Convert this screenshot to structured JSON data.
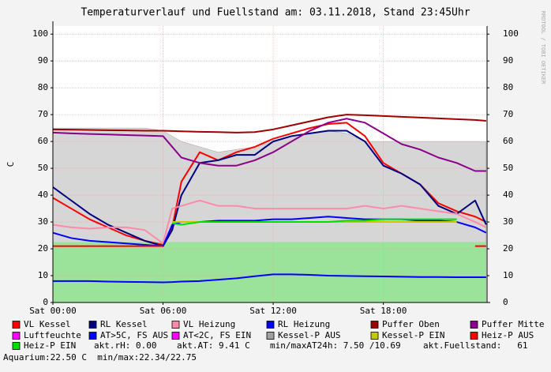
{
  "chart_data": {
    "type": "line",
    "title": "Temperaturverlauf und Fuellstand am: 03.11.2018, Stand 23:45Uhr",
    "y_label": "C",
    "watermark": "RRDTOOL / TOBI OETIKER",
    "x": [
      0,
      1,
      2,
      3,
      4,
      5,
      6,
      6.5,
      7,
      8,
      9,
      10,
      11,
      12,
      13,
      14,
      15,
      16,
      17,
      18,
      19,
      20,
      21,
      22,
      23,
      23.6
    ],
    "xlim": [
      0,
      23.65
    ],
    "xticks": [
      {
        "value": 0,
        "label": "Sat 00:00"
      },
      {
        "value": 6,
        "label": "Sat 06:00"
      },
      {
        "value": 12,
        "label": "Sat 12:00"
      },
      {
        "value": 18,
        "label": "Sat 18:00"
      }
    ],
    "ylim": [
      0,
      103
    ],
    "yticks": [
      0,
      10,
      20,
      30,
      40,
      50,
      60,
      70,
      80,
      90,
      100
    ],
    "y2lim": [
      0,
      103
    ],
    "y2ticks": [
      0,
      10,
      20,
      30,
      40,
      50,
      60,
      70,
      80,
      90,
      100
    ],
    "grid": true,
    "fill_area": {
      "color": "#9be39b",
      "values": [
        22.5,
        22.5,
        22.5,
        22.5,
        22.5,
        22.5,
        22.5,
        22.5,
        22.5,
        22.5,
        22.5,
        22.5,
        22.5,
        22.5,
        22.5,
        22.5,
        22.5,
        22.5,
        22.5,
        22.5,
        22.5,
        22.5,
        22.5,
        22.5,
        22.5,
        22.5
      ]
    },
    "series": [
      {
        "name": "VL Kessel",
        "color": "#ff0000",
        "values": [
          39,
          35,
          31,
          28,
          25,
          23,
          21.5,
          28,
          45,
          56,
          53,
          56,
          58,
          61,
          63,
          65,
          66.5,
          67,
          62,
          52,
          48,
          44,
          37,
          34,
          32,
          30
        ]
      },
      {
        "name": "RL Kessel",
        "color": "#000080",
        "values": [
          43,
          38,
          33,
          29,
          26,
          23,
          21,
          27,
          40,
          52,
          53,
          55,
          55,
          60,
          62,
          63,
          64,
          64,
          60,
          51,
          48,
          44,
          36,
          33,
          38,
          29
        ]
      },
      {
        "name": "VL Heizung",
        "color": "#ff8aa8",
        "values": [
          29,
          28,
          27.5,
          28,
          28,
          27,
          22,
          35,
          36,
          38,
          36,
          36,
          35,
          35,
          35,
          35,
          35,
          35,
          36,
          35,
          36,
          35,
          34,
          33,
          30,
          28
        ]
      },
      {
        "name": "RL Heizung",
        "color": "#0000ff",
        "values": [
          26,
          24,
          23,
          22.5,
          22,
          21.5,
          21,
          29,
          30,
          30,
          30.5,
          30.5,
          30.5,
          31,
          31,
          31.5,
          32,
          31.5,
          31,
          31,
          31,
          30.5,
          30.5,
          30,
          28,
          26
        ]
      },
      {
        "name": "Puffer Oben",
        "color": "#a00000",
        "values": [
          64.5,
          64.4,
          64.3,
          64.2,
          64.1,
          64,
          64,
          63.9,
          63.8,
          63.6,
          63.5,
          63.3,
          63.5,
          64.5,
          66,
          67.5,
          69,
          70,
          69.8,
          69.5,
          69.2,
          68.9,
          68.6,
          68.3,
          68,
          67.7
        ]
      },
      {
        "name": "Puffer Mitte",
        "color": "#8b008b",
        "values": [
          63.3,
          63,
          62.8,
          62.6,
          62.4,
          62.2,
          62,
          58,
          54,
          52,
          51,
          51,
          53,
          56,
          60,
          64,
          67,
          68.5,
          67,
          63,
          59,
          57,
          54,
          52,
          49,
          49
        ]
      },
      {
        "name": "Luftfeuchte",
        "color": "#ff00ff"
      },
      {
        "name": "AT>5C, FS AUS",
        "color": "#0000ff",
        "values": [
          8,
          8,
          8,
          7.8,
          7.7,
          7.6,
          7.5,
          7.6,
          7.8,
          8,
          8.5,
          9,
          9.8,
          10.5,
          10.5,
          10.3,
          10,
          9.9,
          9.8,
          9.7,
          9.6,
          9.5,
          9.5,
          9.4,
          9.4,
          9.4
        ]
      },
      {
        "name": "AT<2C, FS EIN",
        "color": "#ff00ff"
      },
      {
        "name": "Kessel-P AUS",
        "color": "#a0a0a0",
        "style": "area",
        "values": [
          65,
          65,
          65,
          65,
          65,
          65,
          64,
          62,
          60,
          58,
          56,
          57,
          58,
          60,
          62,
          63,
          64,
          63,
          60,
          60,
          60,
          60,
          60,
          60,
          60,
          60
        ]
      },
      {
        "name": "Kessel-P EIN",
        "color": "#c8c800",
        "values": [
          null,
          null,
          null,
          null,
          null,
          null,
          null,
          30,
          30,
          30,
          30,
          30,
          30,
          30,
          30,
          30,
          30,
          30,
          30,
          30,
          30,
          30,
          30,
          30,
          null,
          null
        ]
      },
      {
        "name": "Heiz-P AUS",
        "color": "#ff0000",
        "values": [
          21,
          21,
          21,
          21,
          21,
          21,
          21,
          null,
          null,
          null,
          null,
          null,
          null,
          null,
          null,
          null,
          null,
          null,
          null,
          null,
          null,
          null,
          null,
          null,
          21,
          21
        ]
      },
      {
        "name": "Heiz-P EIN",
        "color": "#00e000",
        "values": [
          null,
          null,
          null,
          null,
          null,
          null,
          null,
          29.5,
          29,
          30,
          30,
          30,
          30,
          30,
          30,
          30,
          30,
          30.5,
          30.5,
          31,
          31,
          31,
          31,
          31,
          null,
          null
        ]
      }
    ],
    "notes": [
      "akt.rH: 0.00",
      "akt.AT: 9.41 C",
      "min/maxAT24h: 7.50 /10.69",
      "akt.Fuellstand:   61",
      "Aquarium:22.50 C  min/max:22.34/22.75"
    ]
  }
}
